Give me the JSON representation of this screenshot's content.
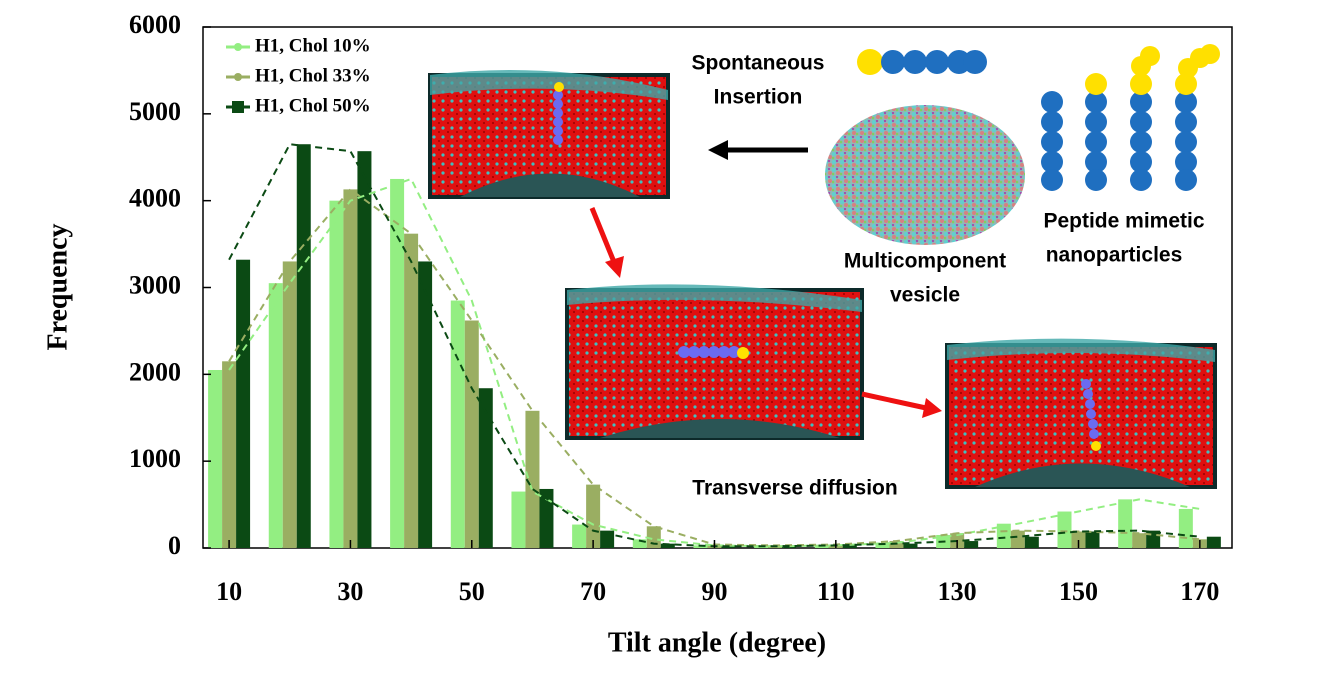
{
  "chart_data": {
    "type": "bar",
    "xlabel": "Tilt angle (degree)",
    "ylabel": "Frequency",
    "x": [
      10,
      20,
      30,
      40,
      50,
      60,
      70,
      80,
      90,
      100,
      110,
      120,
      130,
      140,
      150,
      160,
      170
    ],
    "xlim": [
      5.7,
      175.3
    ],
    "xticks": [
      10,
      30,
      50,
      70,
      90,
      110,
      130,
      150,
      170
    ],
    "ylim": [
      0,
      6000
    ],
    "yticks": [
      0,
      1000,
      2000,
      3000,
      4000,
      5000,
      6000
    ],
    "legend": "upper left",
    "series": [
      {
        "name": "H1, Chol 10%",
        "color": "#93ee82",
        "values": [
          2050,
          3050,
          4000,
          4250,
          2850,
          650,
          270,
          100,
          30,
          20,
          30,
          60,
          150,
          280,
          420,
          560,
          450
        ]
      },
      {
        "name": "H1, Chol 33%",
        "color": "#9aae62",
        "values": [
          2150,
          3300,
          4130,
          3620,
          2620,
          1580,
          730,
          250,
          40,
          30,
          40,
          80,
          170,
          200,
          190,
          170,
          100
        ]
      },
      {
        "name": "H1, Chol 50%",
        "color": "#0b4a14",
        "values": [
          3320,
          4650,
          4570,
          3300,
          1840,
          680,
          200,
          50,
          20,
          20,
          30,
          50,
          80,
          130,
          190,
          200,
          130
        ]
      }
    ],
    "annotations": [
      {
        "lines": [
          "Spontaneous",
          "Insertion"
        ]
      },
      {
        "lines": [
          "Multicomponent",
          "vesicle"
        ]
      },
      {
        "lines": [
          "Peptide mimetic",
          "nanoparticles"
        ]
      },
      {
        "lines": [
          "Transverse diffusion"
        ]
      }
    ]
  }
}
